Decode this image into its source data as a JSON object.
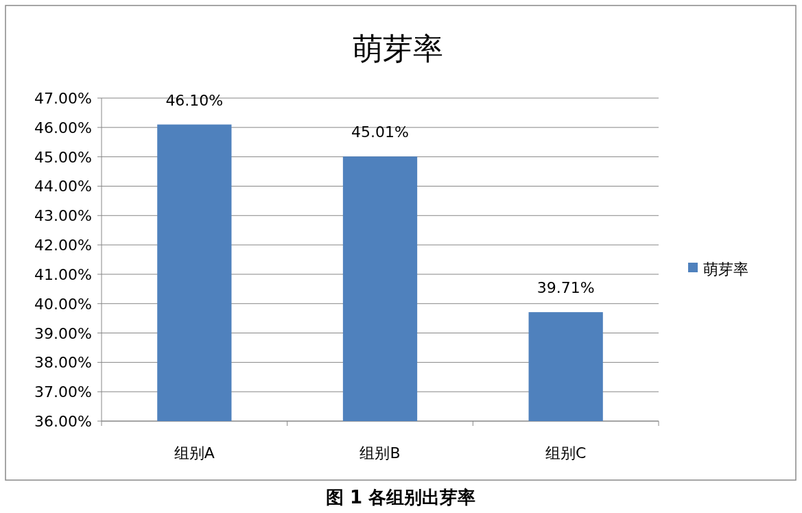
{
  "chart_data": {
    "type": "bar",
    "title": "萌芽率",
    "categories": [
      "组别A",
      "组别B",
      "组别C"
    ],
    "series": [
      {
        "name": "萌芽率",
        "color": "#4f81bd",
        "values": [
          46.1,
          45.01,
          39.71
        ],
        "value_labels": [
          "46.10%",
          "45.01%",
          "39.71%"
        ]
      }
    ],
    "ylim": [
      36,
      47
    ],
    "yticks": [
      {
        "value": 36,
        "label": "36.00%"
      },
      {
        "value": 37,
        "label": "37.00%"
      },
      {
        "value": 38,
        "label": "38.00%"
      },
      {
        "value": 39,
        "label": "39.00%"
      },
      {
        "value": 40,
        "label": "40.00%"
      },
      {
        "value": 41,
        "label": "41.00%"
      },
      {
        "value": 42,
        "label": "42.00%"
      },
      {
        "value": 43,
        "label": "43.00%"
      },
      {
        "value": 44,
        "label": "44.00%"
      },
      {
        "value": 45,
        "label": "45.00%"
      },
      {
        "value": 46,
        "label": "46.00%"
      },
      {
        "value": 47,
        "label": "47.00%"
      }
    ],
    "grid": "y",
    "legend": "right",
    "annotations": [
      "图 1  各组别出芽率"
    ]
  }
}
